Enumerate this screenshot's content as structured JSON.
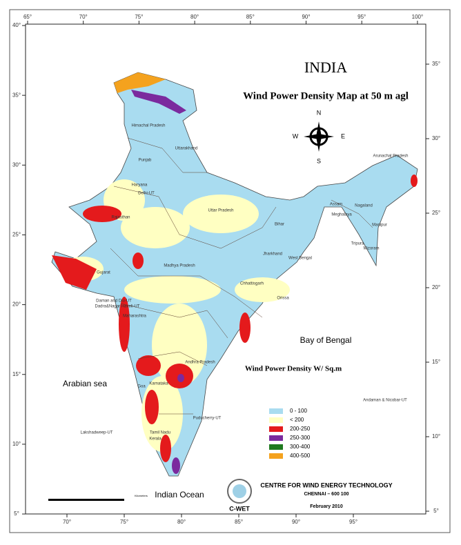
{
  "header": {
    "title": "INDIA",
    "subtitle": "Wind Power Density  Map at 50 m agl"
  },
  "compass": {
    "n": "N",
    "s": "S",
    "e": "E",
    "w": "W"
  },
  "legend": {
    "title": "Wind Power Density W/ Sq.m",
    "items": [
      {
        "label": "0 - 100",
        "color": "#a9dcf0"
      },
      {
        "label": "< 200",
        "color": "#ffffc2"
      },
      {
        "label": "200-250",
        "color": "#e41a1c"
      },
      {
        "label": "250-300",
        "color": "#7b2a9e"
      },
      {
        "label": "300-400",
        "color": "#1f7a1f"
      },
      {
        "label": "400-500",
        "color": "#f4a21e"
      }
    ]
  },
  "states": [
    "Himachal Pradesh",
    "Punjab",
    "Uttarakhand",
    "Haryana",
    "Delhi-UT",
    "Rajasthan",
    "Uttar Pradesh",
    "Bihar",
    "Arunachal Pradesh",
    "Assam",
    "Nagaland",
    "Meghalaya",
    "Manipur",
    "Tripura",
    "Mizoram",
    "Jharkhand",
    "West Bengal",
    "Madhya Pradesh",
    "Gujarat",
    "Chhattisgarh",
    "Orissa",
    "Daman and Diu-UT",
    "Dadra&Nagar Haveli-UT",
    "Maharashtra",
    "Andhra Pradesh",
    "Karnataka",
    "Goa",
    "Puducherry-UT",
    "Tamil Nadu",
    "Kerala",
    "Lakshadweep-UT",
    "Andaman & Nicobar-UT"
  ],
  "seas": [
    "Bay of Bengal",
    "Arabian sea",
    "Indian Ocean"
  ],
  "grid": {
    "top": [
      {
        "value": 65,
        "label": "65°"
      },
      {
        "value": 70,
        "label": "70°"
      },
      {
        "value": 75,
        "label": "75°"
      },
      {
        "value": 80,
        "label": "80°"
      },
      {
        "value": 85,
        "label": "85°"
      },
      {
        "value": 90,
        "label": "90°"
      },
      {
        "value": 95,
        "label": "95°"
      },
      {
        "value": 100,
        "label": "100°"
      }
    ],
    "bottom": [
      {
        "value": 70,
        "label": "70°"
      },
      {
        "value": 75,
        "label": "75°"
      },
      {
        "value": 80,
        "label": "80°"
      },
      {
        "value": 85,
        "label": "85°"
      },
      {
        "value": 90,
        "label": "90°"
      },
      {
        "value": 95,
        "label": "95°"
      }
    ],
    "left": [
      {
        "value": 40,
        "label": "40°"
      },
      {
        "value": 35,
        "label": "35°"
      },
      {
        "value": 30,
        "label": "30°"
      },
      {
        "value": 25,
        "label": "25°"
      },
      {
        "value": 20,
        "label": "20°"
      },
      {
        "value": 15,
        "label": "15°"
      },
      {
        "value": 10,
        "label": "10°"
      },
      {
        "value": 5,
        "label": "5°"
      }
    ],
    "right": [
      {
        "value": 35,
        "label": "35°"
      },
      {
        "value": 30,
        "label": "30°"
      },
      {
        "value": 25,
        "label": "25°"
      },
      {
        "value": 20,
        "label": "20°"
      },
      {
        "value": 15,
        "label": "15°"
      },
      {
        "value": 10,
        "label": "10°"
      },
      {
        "value": 5,
        "label": "5°"
      }
    ]
  },
  "scale": {
    "unit": "Kilometers"
  },
  "credits": {
    "org": "CENTRE FOR WIND ENERGY TECHNOLOGY",
    "address": "CHENNAI – 600 100",
    "date": "February 2010",
    "logo": "C-WET"
  }
}
